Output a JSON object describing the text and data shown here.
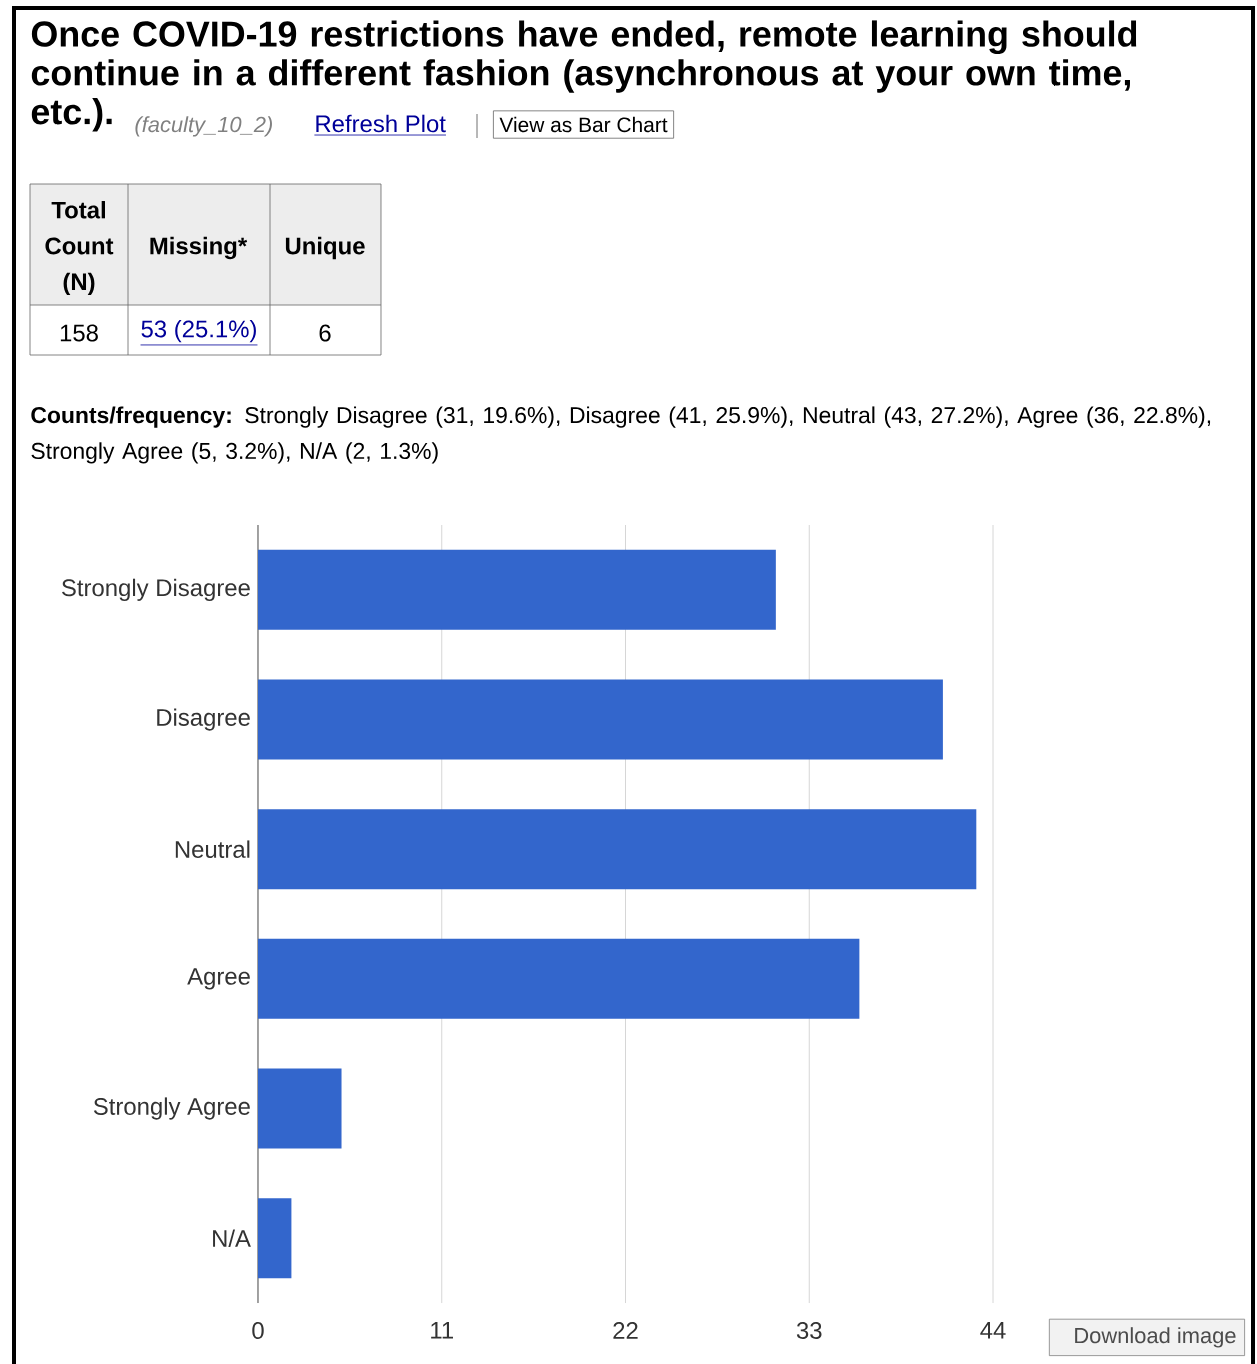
{
  "chart_data": {
    "type": "bar",
    "orientation": "horizontal",
    "title": "Once COVID-19 restrictions have ended, remote learning should continue in a different fashion (asynchronous at your own time, etc.).",
    "categories": [
      "Strongly Disagree",
      "Disagree",
      "Neutral",
      "Agree",
      "Strongly Agree",
      "N/A"
    ],
    "values": [
      31,
      41,
      43,
      36,
      5,
      2
    ],
    "color": "#3366cc",
    "xlim": [
      0,
      44
    ],
    "xticks": [
      0,
      11,
      22,
      33,
      44
    ],
    "grid": "x",
    "annotations": [
      "(faculty_10_2)",
      "Refresh Plot",
      "View as Bar Chart",
      "Total Count (N)",
      "Missing*",
      "Unique",
      "158",
      "53 (25.1%)",
      "6",
      "**Counts/frequency:** Strongly Disagree (31, 19.6%), Disagree (41, 25.9%), Neutral (43, 27.2%), Agree (36, 22.8%), Strongly Agree (5, 3.2%), N/A (2, 1.3%)",
      "Download image"
    ]
  }
}
